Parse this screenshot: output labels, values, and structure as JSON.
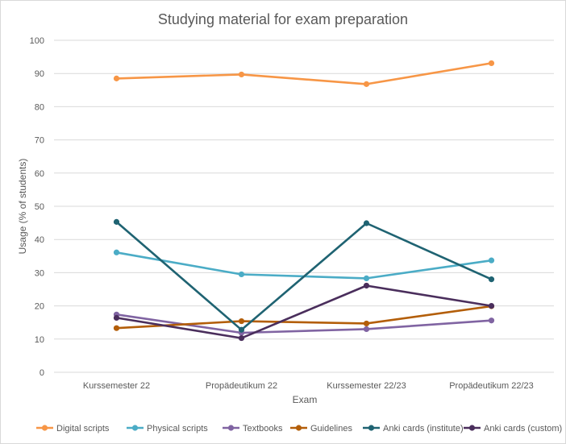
{
  "chart_data": {
    "type": "line",
    "title": "Studying material for exam preparation",
    "xlabel": "Exam",
    "ylabel": "Usage (% of students)",
    "categories": [
      "Kurssemester 22",
      "Propädeutikum 22",
      "Kurssemester 22/23",
      "Propädeutikum 22/23"
    ],
    "ylim": [
      0,
      100
    ],
    "yticks": [
      0,
      10,
      20,
      30,
      40,
      50,
      60,
      70,
      80,
      90,
      100
    ],
    "grid": true,
    "legend_position": "bottom",
    "series": [
      {
        "name": "Digital scripts",
        "color": "#F79646",
        "values": [
          88.5,
          89.7,
          86.8,
          93.1
        ]
      },
      {
        "name": "Physical scripts",
        "color": "#4BACC6",
        "values": [
          36.1,
          29.5,
          28.3,
          33.7
        ]
      },
      {
        "name": "Textbooks",
        "color": "#8064A2",
        "values": [
          17.4,
          11.9,
          13.0,
          15.6
        ]
      },
      {
        "name": "Guidelines",
        "color": "#B35E09",
        "values": [
          13.3,
          15.4,
          14.7,
          19.9
        ]
      },
      {
        "name": "Anki cards (institute)",
        "color": "#1F6372",
        "values": [
          45.3,
          12.8,
          44.9,
          28.0
        ]
      },
      {
        "name": "Anki cards (custom)",
        "color": "#4A2E5C",
        "values": [
          16.4,
          10.3,
          26.1,
          20.0
        ]
      }
    ]
  }
}
